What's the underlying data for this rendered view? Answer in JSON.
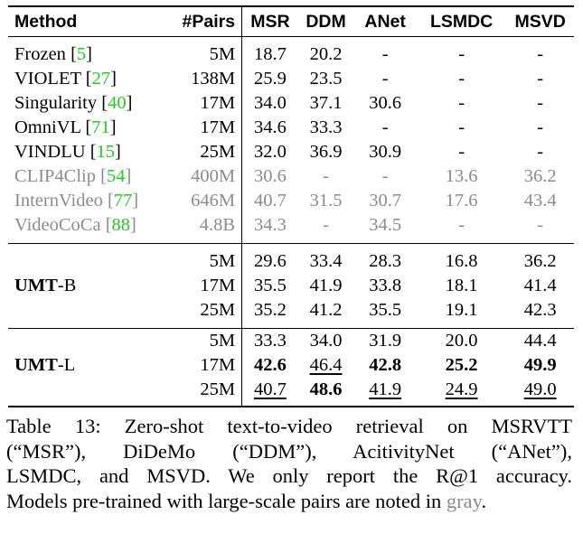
{
  "table": {
    "headers": [
      "Method",
      "#Pairs",
      "MSR",
      "DDM",
      "ANet",
      "LSMDC",
      "MSVD"
    ],
    "rows": [
      {
        "name": "Frozen",
        "ref": "5",
        "pairs": "5M",
        "msr": "18.7",
        "ddm": "20.2",
        "anet": "-",
        "lsmdc": "-",
        "msvd": "-"
      },
      {
        "name": "VIOLET",
        "ref": "27",
        "pairs": "138M",
        "msr": "25.9",
        "ddm": "23.5",
        "anet": "-",
        "lsmdc": "-",
        "msvd": "-"
      },
      {
        "name": "Singularity",
        "ref": "40",
        "pairs": "17M",
        "msr": "34.0",
        "ddm": "37.1",
        "anet": "30.6",
        "lsmdc": "-",
        "msvd": "-"
      },
      {
        "name": "OmniVL",
        "ref": "71",
        "pairs": "17M",
        "msr": "34.6",
        "ddm": "33.3",
        "anet": "-",
        "lsmdc": "-",
        "msvd": "-"
      },
      {
        "name": "VINDLU",
        "ref": "15",
        "pairs": "25M",
        "msr": "32.0",
        "ddm": "36.9",
        "anet": "30.9",
        "lsmdc": "-",
        "msvd": "-"
      },
      {
        "name": "CLIP4Clip",
        "ref": "54",
        "pairs": "400M",
        "msr": "30.6",
        "ddm": "-",
        "anet": "-",
        "lsmdc": "13.6",
        "msvd": "36.2"
      },
      {
        "name": "InternVideo",
        "ref": "77",
        "pairs": "646M",
        "msr": "40.7",
        "ddm": "31.5",
        "anet": "30.7",
        "lsmdc": "17.6",
        "msvd": "43.4"
      },
      {
        "name": "VideoCoCa",
        "ref": "88",
        "pairs": "4.8B",
        "msr": "34.3",
        "ddm": "-",
        "anet": "34.5",
        "lsmdc": "-",
        "msvd": "-"
      }
    ],
    "umt_b": {
      "name_bold": "UMT",
      "name_suffix": "-B",
      "rows": [
        {
          "pairs": "5M",
          "msr": "29.6",
          "ddm": "33.4",
          "anet": "28.3",
          "lsmdc": "16.8",
          "msvd": "36.2"
        },
        {
          "pairs": "17M",
          "msr": "35.5",
          "ddm": "41.9",
          "anet": "33.8",
          "lsmdc": "18.1",
          "msvd": "41.4"
        },
        {
          "pairs": "25M",
          "msr": "35.2",
          "ddm": "41.2",
          "anet": "35.5",
          "lsmdc": "19.1",
          "msvd": "42.3"
        }
      ]
    },
    "umt_l": {
      "name_bold": "UMT",
      "name_suffix": "-L",
      "rows": [
        {
          "pairs": "5M",
          "msr": "33.3",
          "ddm": "34.0",
          "anet": "31.9",
          "lsmdc": "20.0",
          "msvd": "44.4"
        },
        {
          "pairs": "17M",
          "msr": "42.6",
          "ddm": "46.4",
          "anet": "42.8",
          "lsmdc": "25.2",
          "msvd": "49.9"
        },
        {
          "pairs": "25M",
          "msr": "40.7",
          "ddm": "48.6",
          "anet": "41.9",
          "lsmdc": "24.9",
          "msvd": "49.0"
        }
      ]
    }
  },
  "caption": {
    "line1": "Table 13:  Zero-shot text-to-video retrieval on MSRVTT",
    "line2": "(“MSR”),  DiDeMo  (“DDM”),  AcitivityNet  (“ANet”),",
    "line3": "LSMDC, and MSVD. We only report the R@1 accuracy.",
    "line4_prefix": "Models pre-trained with large-scale pairs are noted in ",
    "line4_gray": "gray",
    "line4_suffix": "."
  }
}
